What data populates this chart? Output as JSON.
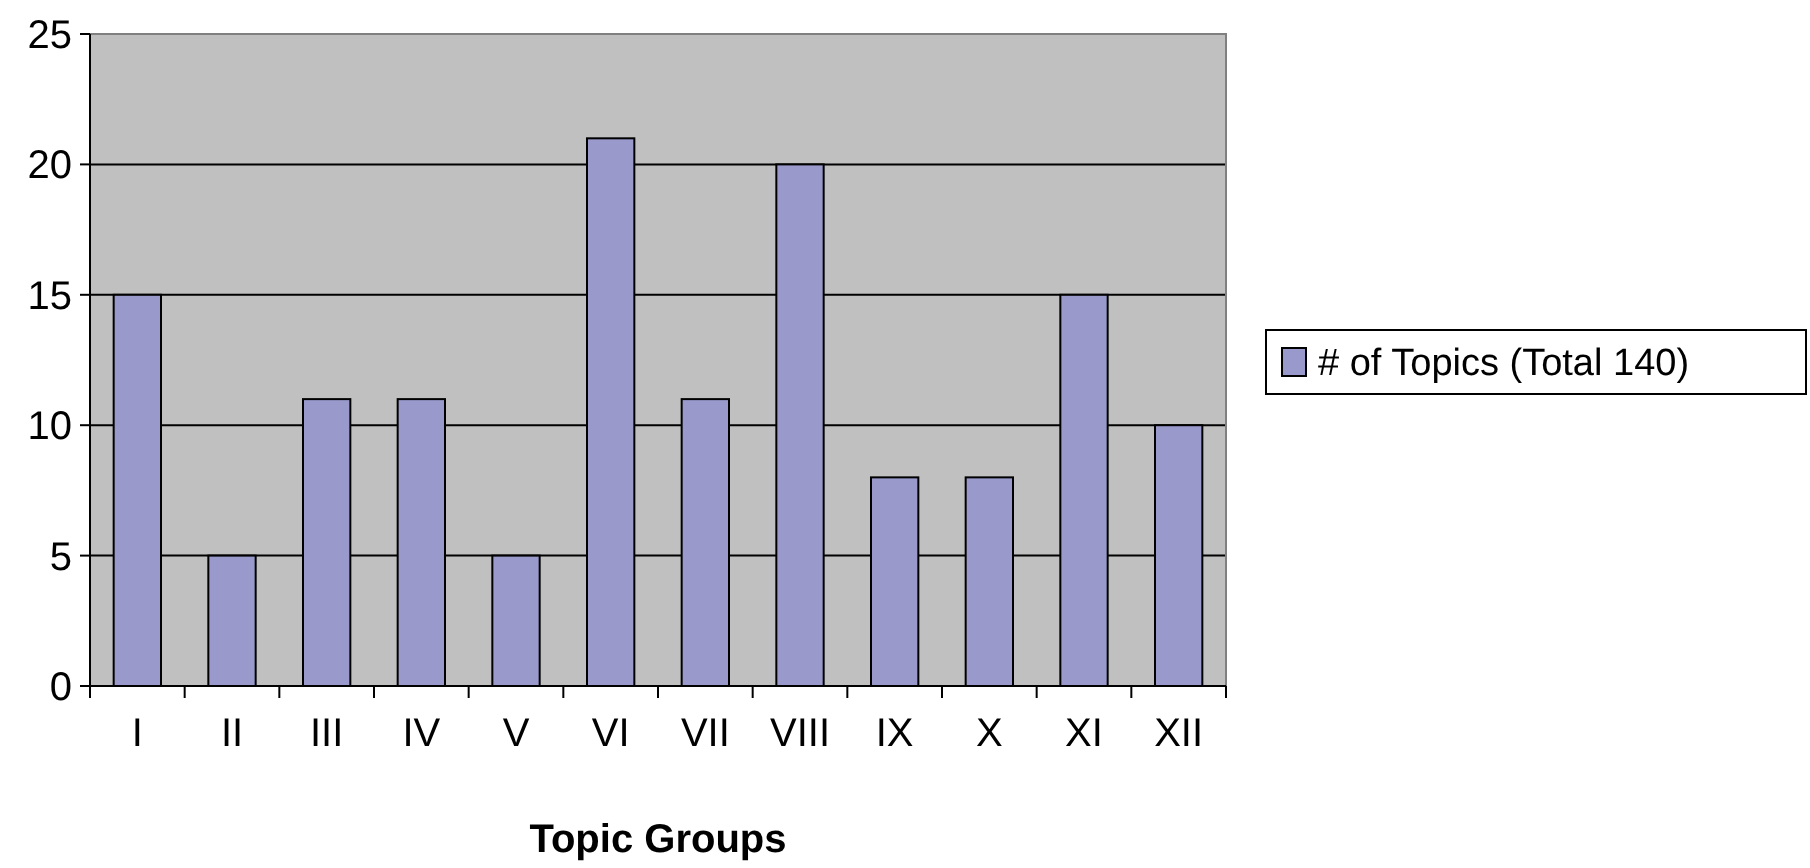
{
  "chart_data": {
    "type": "bar",
    "xlabel": "Topic Groups",
    "categories": [
      "I",
      "II",
      "III",
      "IV",
      "V",
      "VI",
      "VII",
      "VIII",
      "IX",
      "X",
      "XI",
      "XII"
    ],
    "series": [
      {
        "name": "# of Topics (Total 140)",
        "color": "#9999cc",
        "values": [
          15,
          5,
          11,
          11,
          5,
          21,
          11,
          20,
          8,
          8,
          15,
          10
        ]
      }
    ],
    "ylim": [
      0,
      25
    ],
    "yticks": [
      0,
      5,
      10,
      15,
      20,
      25
    ],
    "grid": "y",
    "legend": "right"
  }
}
